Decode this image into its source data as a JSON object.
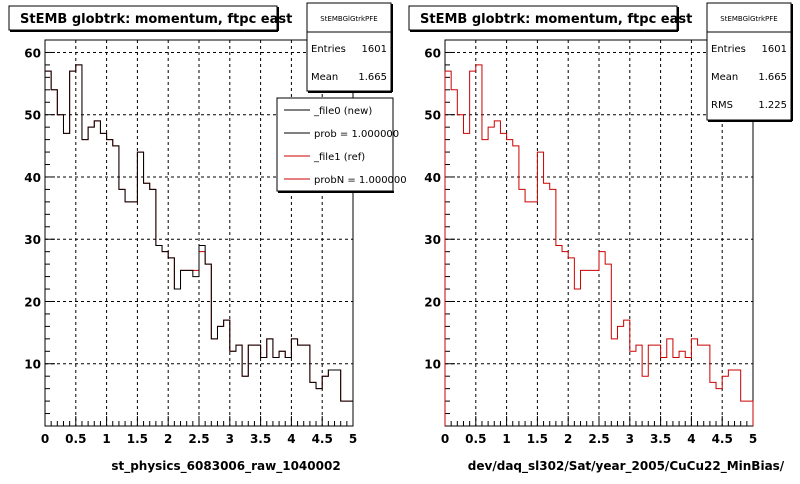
{
  "chart_data": [
    {
      "type": "histogram",
      "title": "StEMB globtrk: momentum, ftpc east",
      "xlabel": "st_physics_6083006_raw_1040002",
      "ylabel": "",
      "xlim": [
        0,
        5
      ],
      "ylim": [
        0,
        62
      ],
      "xticks": [
        "0",
        "0.5",
        "1",
        "1.5",
        "2",
        "2.5",
        "3",
        "3.5",
        "4",
        "4.5",
        "5"
      ],
      "yticks": [
        "10",
        "20",
        "30",
        "40",
        "50",
        "60"
      ],
      "grid": true,
      "bin_width": 0.1,
      "stats": {
        "name": "StEMBGlGtrkPFE",
        "entries_label": "Entries",
        "entries": "1601",
        "mean_label": "Mean",
        "mean": "1.665"
      },
      "legend": {
        "placement": "top-right",
        "entries": [
          {
            "label": "_file0 (new)",
            "color": "#000000"
          },
          {
            "label": "prob = 1.000000",
            "color": "#000000"
          },
          {
            "label": "_file1 (ref)",
            "color": "#cc0000"
          },
          {
            "label": "probN = 1.000000",
            "color": "#cc0000"
          }
        ]
      },
      "series": [
        {
          "name": "_file0 (new)",
          "color": "#000000",
          "x": [
            0.0,
            0.1,
            0.2,
            0.3,
            0.4,
            0.5,
            0.6,
            0.7,
            0.8,
            0.9,
            1.0,
            1.1,
            1.2,
            1.3,
            1.4,
            1.5,
            1.6,
            1.7,
            1.8,
            1.9,
            2.0,
            2.1,
            2.2,
            2.3,
            2.4,
            2.5,
            2.6,
            2.7,
            2.8,
            2.9,
            3.0,
            3.1,
            3.2,
            3.3,
            3.4,
            3.5,
            3.6,
            3.7,
            3.8,
            3.9,
            4.0,
            4.1,
            4.2,
            4.3,
            4.4,
            4.5,
            4.6,
            4.7,
            4.8,
            4.9
          ],
          "values": [
            57,
            54,
            50,
            47,
            57,
            58,
            46,
            48,
            49,
            47,
            46,
            45,
            38,
            36,
            36,
            44,
            39,
            38,
            29,
            28,
            27,
            22,
            25,
            25,
            24,
            29,
            26,
            14,
            16,
            17,
            12,
            13,
            8,
            13,
            13,
            11,
            14,
            11,
            12,
            11,
            14,
            13,
            13,
            7,
            6,
            8,
            9,
            9,
            4,
            4
          ]
        },
        {
          "name": "_file1 (ref)",
          "color": "#cc0000",
          "x": [
            0.0,
            0.1,
            0.2,
            0.3,
            0.4,
            0.5,
            0.6,
            0.7,
            0.8,
            0.9,
            1.0,
            1.1,
            1.2,
            1.3,
            1.4,
            1.5,
            1.6,
            1.7,
            1.8,
            1.9,
            2.0,
            2.1,
            2.2,
            2.3,
            2.4,
            2.5,
            2.6,
            2.7,
            2.8,
            2.9,
            3.0,
            3.1,
            3.2,
            3.3,
            3.4,
            3.5,
            3.6,
            3.7,
            3.8,
            3.9,
            4.0,
            4.1,
            4.2,
            4.3,
            4.4,
            4.5,
            4.6,
            4.7,
            4.8,
            4.9
          ],
          "values": [
            57,
            54,
            50,
            47,
            57,
            58,
            46,
            48,
            49,
            47,
            46,
            45,
            38,
            36,
            36,
            44,
            39,
            38,
            29,
            28,
            27,
            22,
            25,
            25,
            25,
            28,
            26,
            14,
            16,
            17,
            12,
            13,
            8,
            13,
            13,
            11,
            14,
            11,
            12,
            11,
            14,
            13,
            13,
            7,
            6,
            8,
            9,
            9,
            4,
            4
          ]
        }
      ]
    },
    {
      "type": "histogram",
      "title": "StEMB globtrk: momentum, ftpc east",
      "xlabel": "dev/daq_sl302/Sat/year_2005/CuCu22_MinBias/",
      "ylabel": "",
      "xlim": [
        0,
        5
      ],
      "ylim": [
        0,
        62
      ],
      "xticks": [
        "0",
        "0.5",
        "1",
        "1.5",
        "2",
        "2.5",
        "3",
        "3.5",
        "4",
        "4.5",
        "5"
      ],
      "yticks": [
        "10",
        "20",
        "30",
        "40",
        "50",
        "60"
      ],
      "grid": true,
      "bin_width": 0.1,
      "stats": {
        "name": "StEMBGlGtrkPFE",
        "entries_label": "Entries",
        "entries": "1601",
        "mean_label": "Mean",
        "mean": "1.665",
        "rms_label": "RMS",
        "rms": "1.225"
      },
      "series": [
        {
          "name": "",
          "color": "#cc0000",
          "x": [
            0.0,
            0.1,
            0.2,
            0.3,
            0.4,
            0.5,
            0.6,
            0.7,
            0.8,
            0.9,
            1.0,
            1.1,
            1.2,
            1.3,
            1.4,
            1.5,
            1.6,
            1.7,
            1.8,
            1.9,
            2.0,
            2.1,
            2.2,
            2.3,
            2.4,
            2.5,
            2.6,
            2.7,
            2.8,
            2.9,
            3.0,
            3.1,
            3.2,
            3.3,
            3.4,
            3.5,
            3.6,
            3.7,
            3.8,
            3.9,
            4.0,
            4.1,
            4.2,
            4.3,
            4.4,
            4.5,
            4.6,
            4.7,
            4.8,
            4.9
          ],
          "values": [
            57,
            54,
            50,
            47,
            57,
            58,
            46,
            48,
            49,
            47,
            46,
            45,
            38,
            36,
            36,
            44,
            39,
            38,
            29,
            28,
            27,
            22,
            25,
            25,
            25,
            28,
            26,
            14,
            16,
            17,
            12,
            13,
            8,
            13,
            13,
            11,
            14,
            11,
            12,
            11,
            14,
            13,
            13,
            7,
            6,
            8,
            9,
            9,
            4,
            4
          ]
        }
      ]
    }
  ]
}
